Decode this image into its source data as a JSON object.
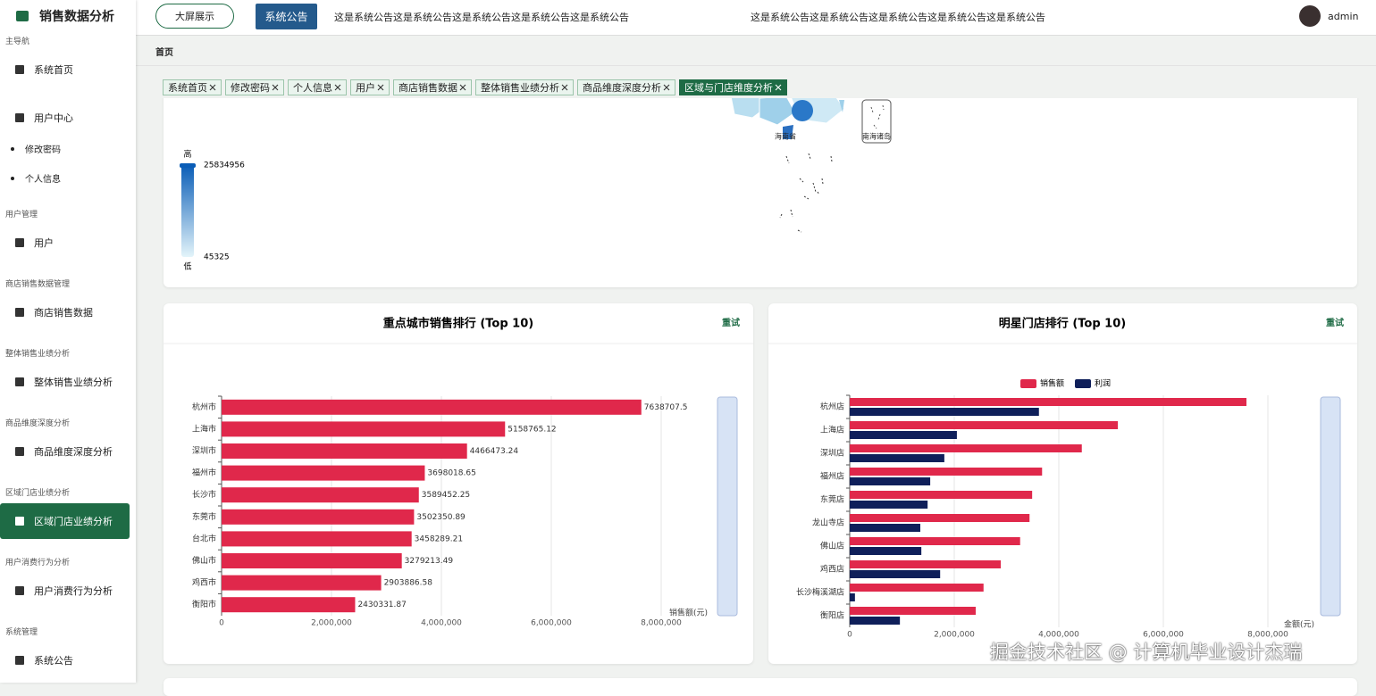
{
  "sidebar": {
    "title": "销售数据分析",
    "groups": [
      {
        "label": "主导航",
        "items": [
          {
            "label": "系统首页"
          },
          {
            "label": "用户中心",
            "children": [
              "修改密码",
              "个人信息"
            ]
          }
        ]
      },
      {
        "label": "用户管理",
        "items": [
          {
            "label": "用户"
          }
        ]
      },
      {
        "label": "商店销售数据管理",
        "items": [
          {
            "label": "商店销售数据"
          }
        ]
      },
      {
        "label": "整体销售业绩分析",
        "items": [
          {
            "label": "整体销售业绩分析"
          }
        ]
      },
      {
        "label": "商品维度深度分析",
        "items": [
          {
            "label": "商品维度深度分析"
          }
        ]
      },
      {
        "label": "区域门店业绩分析",
        "items": [
          {
            "label": "区域门店业绩分析",
            "active": true
          }
        ]
      },
      {
        "label": "用户消费行为分析",
        "items": [
          {
            "label": "用户消费行为分析"
          }
        ]
      },
      {
        "label": "系统管理",
        "items": [
          {
            "label": "系统公告"
          }
        ]
      }
    ]
  },
  "header": {
    "big_screen": "大屏展示",
    "notice_button": "系统公告",
    "notices": [
      "这是系统公告这是系统公告这是系统公告这是系统公告这是系统公告",
      "这是系统公告这是系统公告这是系统公告这是系统公告这是系统公告"
    ],
    "user": "admin"
  },
  "breadcrumb": "首页",
  "tabs": {
    "items": [
      "系统首页",
      "修改密码",
      "个人信息",
      "用户",
      "商店销售数据",
      "整体销售业绩分析",
      "商品维度深度分析",
      "区域与门店维度分析"
    ],
    "active": 7
  },
  "chart_data": [
    {
      "type": "map",
      "labels": [
        "海南省",
        "南海诸岛"
      ],
      "visual_map": {
        "max": 25834956,
        "min": 45325,
        "high_label": "高",
        "low_label": "低"
      }
    },
    {
      "type": "bar",
      "orientation": "horizontal",
      "title": "重点城市销售排行 (Top 10)",
      "action": "重试",
      "x_label": "销售额(元)",
      "color": "#e0284b",
      "categories": [
        "杭州市",
        "上海市",
        "深圳市",
        "福州市",
        "长沙市",
        "东莞市",
        "台北市",
        "佛山市",
        "鸡西市",
        "衡阳市"
      ],
      "values": [
        7638707.5,
        5158765.12,
        4466473.24,
        3698018.65,
        3589452.25,
        3502350.89,
        3458289.21,
        3279213.49,
        2903886.58,
        2430331.87
      ],
      "xlim": [
        0,
        8000000
      ],
      "xticks": [
        0,
        {
          "value": 2000000,
          "label": "2,000,000"
        },
        {
          "value": 4000000,
          "label": "4,000,000"
        },
        {
          "value": 6000000,
          "label": "6,000,000"
        },
        {
          "value": 8000000,
          "label": "8,000,000"
        }
      ],
      "grid": true
    },
    {
      "type": "grouped_bar",
      "orientation": "horizontal",
      "title": "明星门店排行 (Top 10)",
      "action": "重试",
      "x_label": "金额(元)",
      "categories": [
        "杭州店",
        "上海店",
        "深圳店",
        "福州店",
        "东莞店",
        "龙山寺店",
        "佛山店",
        "鸡西店",
        "长沙梅溪湖店",
        "衡阳店"
      ],
      "series": [
        {
          "name": "销售额",
          "color": "#e0284b",
          "values": [
            7590000,
            5130000,
            4440000,
            3680000,
            3490000,
            3440000,
            3260000,
            2890000,
            2560000,
            2410000
          ]
        },
        {
          "name": "利润",
          "color": "#0f1f5a",
          "values": [
            3620000,
            2050000,
            1810000,
            1540000,
            1490000,
            1350000,
            1370000,
            1730000,
            100000,
            960000
          ]
        }
      ],
      "xlim": [
        0,
        8000000
      ],
      "xticks": [
        0,
        {
          "value": 2000000,
          "label": "2,000,000"
        },
        {
          "value": 4000000,
          "label": "4,000,000"
        },
        {
          "value": 6000000,
          "label": "6,000,000"
        },
        {
          "value": 8000000,
          "label": "8,000,000"
        }
      ],
      "grid": true
    }
  ],
  "watermark": "掘金技术社区 @ 计算机毕业设计杰瑞"
}
